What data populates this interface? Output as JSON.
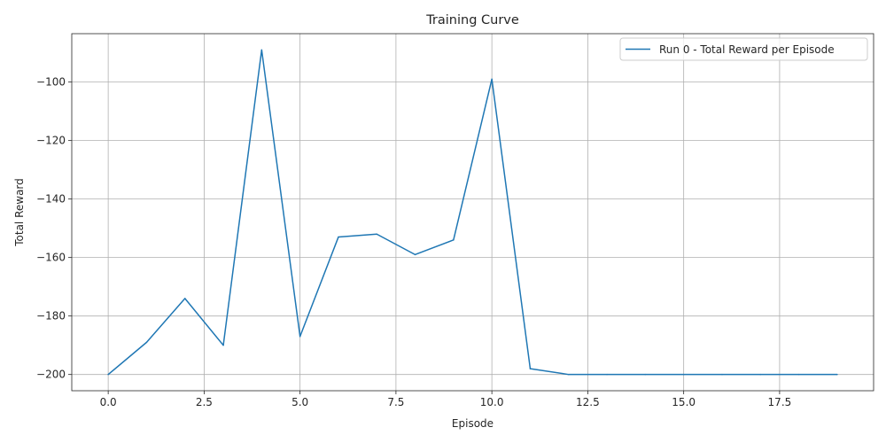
{
  "chart_data": {
    "type": "line",
    "title": "Training Curve",
    "xlabel": "Episode",
    "ylabel": "Total Reward",
    "xlim": [
      -0.95,
      19.95
    ],
    "ylim": [
      -205.55,
      -83.45
    ],
    "xticks": [
      0.0,
      2.5,
      5.0,
      7.5,
      10.0,
      12.5,
      15.0,
      17.5
    ],
    "xtick_labels": [
      "0.0",
      "2.5",
      "5.0",
      "7.5",
      "10.0",
      "12.5",
      "15.0",
      "17.5"
    ],
    "yticks": [
      -200,
      -180,
      -160,
      -140,
      -120,
      -100
    ],
    "ytick_labels": [
      "−200",
      "−180",
      "−160",
      "−140",
      "−120",
      "−100"
    ],
    "grid": true,
    "legend_position": "top-right",
    "series": [
      {
        "name": "Run 0 - Total Reward per Episode",
        "color": "#1f77b4",
        "x": [
          0,
          1,
          2,
          3,
          4,
          5,
          6,
          7,
          8,
          9,
          10,
          11,
          12,
          13,
          14,
          15,
          16,
          17,
          18,
          19
        ],
        "values": [
          -200,
          -189,
          -174,
          -190,
          -89,
          -187,
          -153,
          -152,
          -159,
          -154,
          -99,
          -198,
          -200,
          -200,
          -200,
          -200,
          -200,
          -200,
          -200,
          -200
        ]
      }
    ]
  }
}
